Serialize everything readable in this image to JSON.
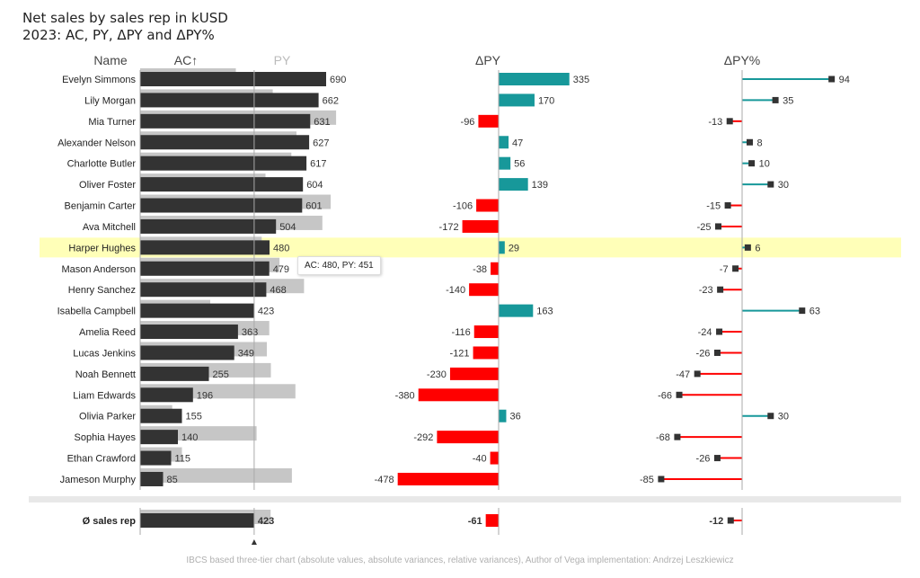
{
  "title": "Net sales by sales rep in kUSD",
  "subtitle": "2023: AC, PY, ΔPY and ΔPY%",
  "tooltip": "AC: 480, PY: 451",
  "footer": "IBCS based three-tier chart (absolute values, absolute variances, relative variances), Author of Vega implementation: Andrzej Leszkiewicz",
  "chart_data": {
    "type": "bar",
    "headers": {
      "name": "Name",
      "ac": "AC↑",
      "py": "PY",
      "dpy": "ΔPY",
      "dpyp": "ΔPY%"
    },
    "categories": [
      "Evelyn Simmons",
      "Lily Morgan",
      "Mia Turner",
      "Alexander Nelson",
      "Charlotte Butler",
      "Oliver Foster",
      "Benjamin Carter",
      "Ava Mitchell",
      "Harper Hughes",
      "Mason Anderson",
      "Henry Sanchez",
      "Isabella Campbell",
      "Amelia Reed",
      "Lucas Jenkins",
      "Noah Bennett",
      "Liam Edwards",
      "Olivia Parker",
      "Sophia Hayes",
      "Ethan Crawford",
      "Jameson Murphy"
    ],
    "series": [
      {
        "name": "AC",
        "values": [
          690,
          662,
          631,
          627,
          617,
          604,
          601,
          504,
          480,
          479,
          468,
          423,
          363,
          349,
          255,
          196,
          155,
          140,
          115,
          85
        ]
      },
      {
        "name": "PY",
        "values": [
          355,
          492,
          727,
          580,
          561,
          465,
          707,
          676,
          451,
          517,
          608,
          260,
          479,
          470,
          485,
          576,
          119,
          432,
          155,
          563
        ]
      },
      {
        "name": "ΔPY",
        "values": [
          335,
          170,
          -96,
          47,
          56,
          139,
          -106,
          -172,
          29,
          -38,
          -140,
          163,
          -116,
          -121,
          -230,
          -380,
          36,
          -292,
          -40,
          -478
        ]
      },
      {
        "name": "ΔPY%",
        "values": [
          94,
          35,
          -13,
          8,
          10,
          30,
          -15,
          -25,
          6,
          -7,
          -23,
          63,
          -24,
          -26,
          -47,
          -66,
          30,
          -68,
          -26,
          -85
        ]
      }
    ],
    "average": {
      "label": "Ø sales rep",
      "ac": 423,
      "py": 484,
      "dpy": -61,
      "dpyp": -12
    },
    "highlighted": "Harper Hughes",
    "colors": {
      "ac": "#333333",
      "py": "#c6c6c6",
      "positive": "#17989a",
      "negative": "#ff0000",
      "highlight": "#ffffb8",
      "marker": "#333333"
    }
  }
}
